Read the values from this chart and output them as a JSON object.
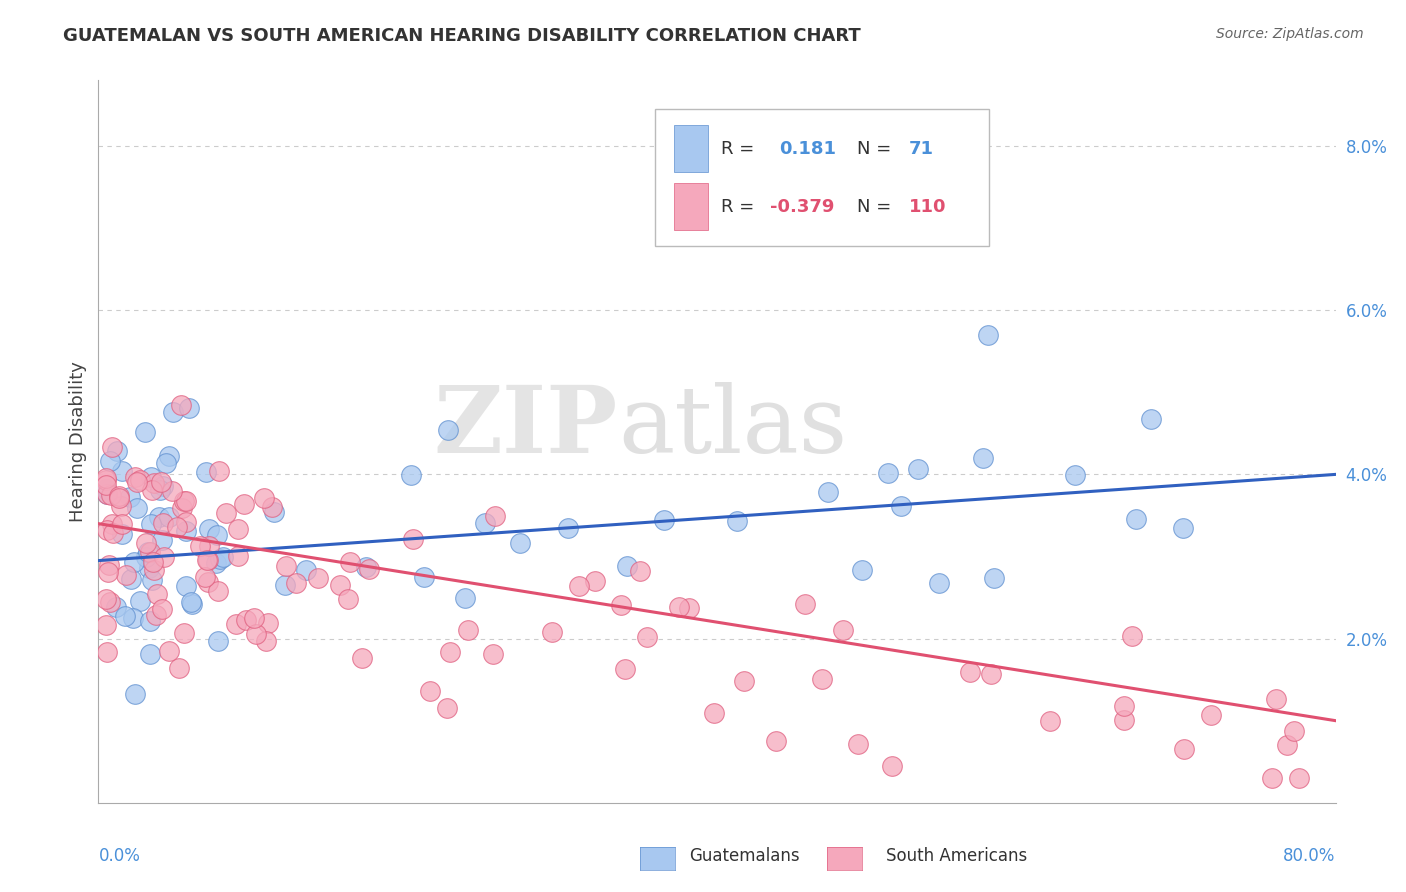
{
  "title": "GUATEMALAN VS SOUTH AMERICAN HEARING DISABILITY CORRELATION CHART",
  "source": "Source: ZipAtlas.com",
  "ylabel": "Hearing Disability",
  "xlim": [
    0.0,
    0.8
  ],
  "ylim": [
    0.0,
    0.088
  ],
  "yticks": [
    0.0,
    0.02,
    0.04,
    0.06,
    0.08
  ],
  "yticklabels": [
    "",
    "2.0%",
    "4.0%",
    "6.0%",
    "8.0%"
  ],
  "blue_color": "#A8C8F0",
  "pink_color": "#F5A8BC",
  "blue_edge_color": "#6090D0",
  "pink_edge_color": "#E06080",
  "blue_line_color": "#3060C0",
  "pink_line_color": "#E05070",
  "grid_color": "#CCCCCC",
  "watermark_zip": "ZIP",
  "watermark_atlas": "atlas",
  "legend_R_blue": "R =",
  "legend_val_blue": "0.181",
  "legend_N_blue": "N =",
  "legend_Nval_blue": "71",
  "legend_R_pink": "R =",
  "legend_val_pink": "-0.379",
  "legend_N_pink": "N =",
  "legend_Nval_pink": "110",
  "blue_line_x0": 0.0,
  "blue_line_y0": 0.0295,
  "blue_line_x1": 0.8,
  "blue_line_y1": 0.04,
  "pink_line_x0": 0.0,
  "pink_line_y0": 0.034,
  "pink_line_x1": 0.8,
  "pink_line_y1": 0.01
}
